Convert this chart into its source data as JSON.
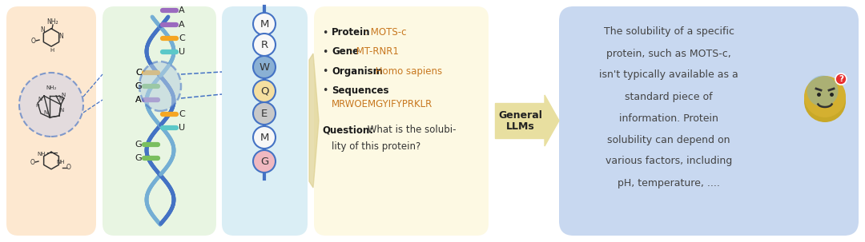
{
  "bg_color": "#ffffff",
  "panel1_bg": "#fde8d0",
  "panel2_bg": "#e8f5e2",
  "panel3_bg": "#daeef5",
  "panel4_bg": "#fdf9e3",
  "panel5_bg": "#c8d8f0",
  "dna_blue1": "#4472c4",
  "dna_blue2": "#74aed4",
  "nuc_A": "#9b6abf",
  "nuc_C": "#f5a623",
  "nuc_U": "#5bc8c8",
  "nuc_G": "#7abf5e",
  "chain_color": "#4472c4",
  "text_dark": "#222222",
  "bold_color": "#1a1a1a",
  "value_color": "#c87820",
  "seq_color": "#c87820",
  "response_color": "#444444",
  "arrow_fill": "#e8dfa0",
  "emoji_body": "#d4b030",
  "emoji_top": "#7ab0c8",
  "badge_color": "#e83030",
  "aa_colors": [
    "#f8f8f8",
    "#f8f8f8",
    "#8ab0d4",
    "#f5dfa0",
    "#c8c8c8",
    "#f8f8f8",
    "#f0b8c0"
  ],
  "nuc_data": [
    [
      290,
      "A",
      "#9b6abf",
      1
    ],
    [
      272,
      "A",
      "#9b6abf",
      1
    ],
    [
      255,
      "C",
      "#f5a623",
      1
    ],
    [
      238,
      "U",
      "#5bc8c8",
      1
    ],
    [
      212,
      "C",
      "#f5a623",
      -1
    ],
    [
      195,
      "G",
      "#7abf5e",
      -1
    ],
    [
      178,
      "A",
      "#9b6abf",
      -1
    ],
    [
      160,
      "C",
      "#f5a623",
      1
    ],
    [
      143,
      "U",
      "#5bc8c8",
      1
    ],
    [
      122,
      "G",
      "#7abf5e",
      -1
    ],
    [
      105,
      "G",
      "#7abf5e",
      -1
    ]
  ],
  "aa_data": [
    [
      "M",
      273,
      "#f8f8f8"
    ],
    [
      "R",
      247,
      "#f8f8f8"
    ],
    [
      "W",
      219,
      "#8ab0d4"
    ],
    [
      "Q",
      189,
      "#f5dfa0"
    ],
    [
      "E",
      161,
      "#c8c8c8"
    ],
    [
      "M",
      131,
      "#f8f8f8"
    ],
    [
      "G",
      101,
      "#f0b8c0"
    ]
  ],
  "panel5_lines": [
    "The solubility of a specific",
    "protein, such as MOTS-c,",
    "isn't typically available as a",
    "standard piece of",
    "information. Protein",
    "solubility can depend on",
    "various factors, including",
    "pH, temperature, ...."
  ]
}
